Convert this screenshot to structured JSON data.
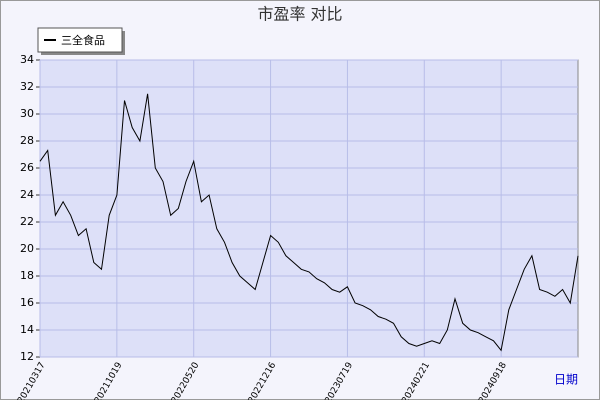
{
  "chart_data": {
    "type": "line",
    "title": "市盈率  对比",
    "x_label": "日期",
    "categories": [
      "20210317",
      null,
      null,
      null,
      null,
      null,
      null,
      null,
      null,
      null,
      "20211019",
      null,
      null,
      null,
      null,
      null,
      null,
      null,
      null,
      null,
      "20220520",
      null,
      null,
      null,
      null,
      null,
      null,
      null,
      null,
      null,
      "20221216",
      null,
      null,
      null,
      null,
      null,
      null,
      null,
      null,
      null,
      "20230719",
      null,
      null,
      null,
      null,
      null,
      null,
      null,
      null,
      null,
      "20240221",
      null,
      null,
      null,
      null,
      null,
      null,
      null,
      null,
      null,
      "20240918",
      null,
      null,
      null,
      null,
      null,
      null,
      null,
      null,
      null,
      null
    ],
    "series": [
      {
        "name": "三全食品",
        "color": "#000000",
        "values": [
          26.5,
          27.3,
          22.5,
          23.5,
          22.5,
          21,
          21.5,
          19,
          18.5,
          22.5,
          24,
          31,
          29,
          28,
          31.5,
          26,
          25,
          22.5,
          23,
          25,
          26.5,
          23.5,
          24,
          21.5,
          20.5,
          19,
          18,
          17.5,
          17,
          19,
          21,
          20.5,
          19.5,
          19,
          18.5,
          18.3,
          17.8,
          17.5,
          17,
          16.8,
          17.2,
          16,
          15.8,
          15.5,
          15,
          14.8,
          14.5,
          13.5,
          13,
          12.8,
          13,
          13.2,
          13,
          14,
          16.3,
          14.5,
          14,
          13.8,
          13.5,
          13.2,
          12.5,
          15.5,
          17,
          18.5,
          19.5,
          17,
          16.8,
          16.5,
          17,
          16,
          19.5
        ]
      }
    ],
    "ylim": [
      12,
      34
    ],
    "yticks": [
      12,
      14,
      16,
      18,
      20,
      22,
      24,
      26,
      28,
      30,
      32,
      34
    ],
    "grid": true,
    "legend": "top-left"
  }
}
